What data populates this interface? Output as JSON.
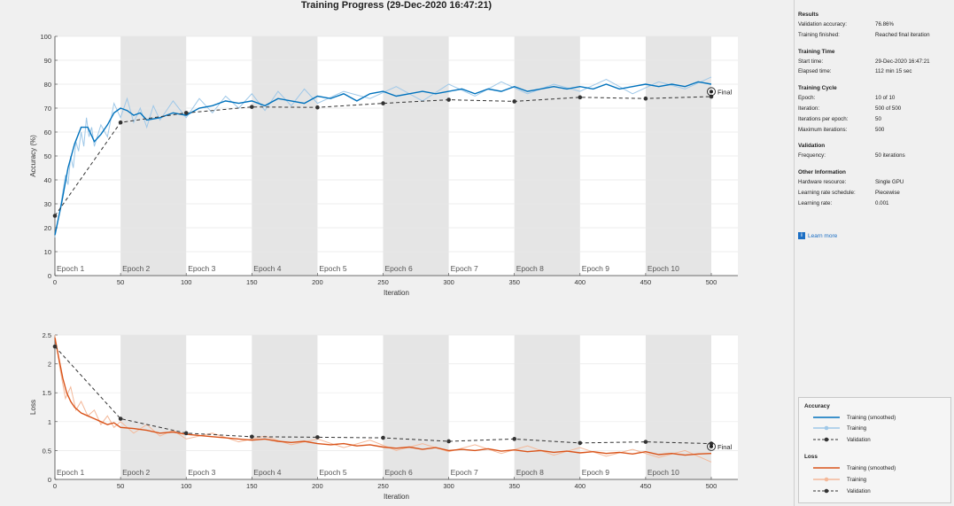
{
  "title": "Training Progress (29-Dec-2020 16:47:21)",
  "chart_data": [
    {
      "type": "line",
      "name": "accuracy",
      "ylabel": "Accuracy (%)",
      "xlabel": "Iteration",
      "xlim": [
        0,
        500
      ],
      "ylim": [
        0,
        100
      ],
      "xticks": [
        0,
        50,
        100,
        150,
        200,
        250,
        300,
        350,
        400,
        450,
        500
      ],
      "yticks": [
        0,
        10,
        20,
        30,
        40,
        50,
        60,
        70,
        80,
        90,
        100
      ],
      "epochs": [
        "Epoch 1",
        "Epoch 2",
        "Epoch 3",
        "Epoch 4",
        "Epoch 5",
        "Epoch 6",
        "Epoch 7",
        "Epoch 8",
        "Epoch 9",
        "Epoch 10"
      ],
      "smoothed": {
        "x": [
          0,
          5,
          10,
          15,
          20,
          25,
          30,
          35,
          40,
          45,
          50,
          55,
          60,
          65,
          70,
          80,
          90,
          100,
          110,
          120,
          130,
          140,
          150,
          160,
          170,
          180,
          190,
          200,
          210,
          220,
          230,
          240,
          250,
          260,
          270,
          280,
          290,
          300,
          310,
          320,
          330,
          340,
          350,
          360,
          370,
          380,
          390,
          400,
          410,
          420,
          430,
          440,
          450,
          460,
          470,
          480,
          490,
          500
        ],
        "y": [
          17,
          30,
          45,
          55,
          62,
          62,
          56,
          59,
          63,
          68,
          70,
          69,
          67,
          68,
          65,
          66,
          68,
          67,
          70,
          71,
          73,
          72,
          73,
          71,
          74,
          73,
          72,
          75,
          74,
          76,
          73,
          76,
          77,
          75,
          76,
          77,
          76,
          77,
          78,
          76,
          78,
          77,
          79,
          77,
          78,
          79,
          78,
          79,
          78,
          80,
          78,
          79,
          80,
          79,
          80,
          79,
          81,
          80
        ]
      },
      "training": {
        "x": [
          0,
          2,
          4,
          6,
          8,
          10,
          12,
          14,
          16,
          18,
          20,
          22,
          24,
          26,
          28,
          30,
          35,
          40,
          45,
          50,
          55,
          60,
          65,
          70,
          75,
          80,
          90,
          100,
          110,
          120,
          130,
          140,
          150,
          160,
          170,
          180,
          190,
          200,
          220,
          240,
          260,
          280,
          300,
          320,
          340,
          360,
          380,
          400,
          420,
          440,
          460,
          480,
          500
        ],
        "y": [
          16,
          22,
          28,
          35,
          42,
          38,
          50,
          45,
          56,
          52,
          60,
          54,
          66,
          58,
          62,
          54,
          63,
          58,
          72,
          66,
          74,
          64,
          70,
          62,
          71,
          65,
          73,
          66,
          74,
          68,
          75,
          70,
          76,
          69,
          77,
          71,
          78,
          72,
          77,
          74,
          79,
          73,
          80,
          75,
          81,
          76,
          80,
          77,
          82,
          76,
          81,
          78,
          83
        ]
      },
      "validation": {
        "x": [
          0,
          50,
          100,
          150,
          200,
          250,
          300,
          350,
          400,
          450,
          500
        ],
        "y": [
          25,
          64,
          68,
          70.5,
          70.3,
          72,
          73.5,
          72.8,
          74.5,
          74,
          74.8
        ]
      },
      "final_marker": {
        "label": "Final",
        "x": 500,
        "y": 76.9
      }
    },
    {
      "type": "line",
      "name": "loss",
      "ylabel": "Loss",
      "xlabel": "Iteration",
      "xlim": [
        0,
        500
      ],
      "ylim": [
        0,
        2.5
      ],
      "xticks": [
        0,
        50,
        100,
        150,
        200,
        250,
        300,
        350,
        400,
        450,
        500
      ],
      "yticks": [
        0,
        0.5,
        1,
        1.5,
        2,
        2.5
      ],
      "epochs": [
        "Epoch 1",
        "Epoch 2",
        "Epoch 3",
        "Epoch 4",
        "Epoch 5",
        "Epoch 6",
        "Epoch 7",
        "Epoch 8",
        "Epoch 9",
        "Epoch 10"
      ],
      "smoothed": {
        "x": [
          0,
          3,
          6,
          9,
          12,
          15,
          20,
          25,
          30,
          35,
          40,
          45,
          50,
          60,
          70,
          80,
          90,
          100,
          110,
          120,
          130,
          140,
          150,
          160,
          170,
          180,
          190,
          200,
          210,
          220,
          230,
          240,
          250,
          260,
          270,
          280,
          290,
          300,
          310,
          320,
          330,
          340,
          350,
          360,
          370,
          380,
          390,
          400,
          410,
          420,
          430,
          440,
          450,
          460,
          470,
          480,
          490,
          500
        ],
        "y": [
          2.45,
          2.1,
          1.75,
          1.5,
          1.35,
          1.25,
          1.15,
          1.1,
          1.05,
          1.0,
          0.95,
          0.98,
          0.9,
          0.88,
          0.85,
          0.8,
          0.82,
          0.78,
          0.76,
          0.74,
          0.72,
          0.7,
          0.68,
          0.7,
          0.66,
          0.64,
          0.66,
          0.62,
          0.6,
          0.62,
          0.58,
          0.6,
          0.56,
          0.54,
          0.56,
          0.52,
          0.55,
          0.5,
          0.52,
          0.5,
          0.53,
          0.49,
          0.51,
          0.48,
          0.5,
          0.47,
          0.49,
          0.46,
          0.48,
          0.45,
          0.47,
          0.44,
          0.48,
          0.43,
          0.45,
          0.42,
          0.44,
          0.45
        ]
      },
      "training": {
        "x": [
          0,
          4,
          8,
          12,
          16,
          20,
          25,
          30,
          35,
          40,
          45,
          50,
          60,
          70,
          80,
          90,
          100,
          120,
          140,
          160,
          180,
          200,
          220,
          240,
          260,
          280,
          300,
          320,
          340,
          360,
          380,
          400,
          420,
          440,
          460,
          480,
          500
        ],
        "y": [
          2.5,
          1.9,
          1.4,
          1.6,
          1.2,
          1.35,
          1.1,
          1.2,
          0.95,
          1.1,
          0.9,
          1.0,
          0.8,
          0.95,
          0.75,
          0.85,
          0.7,
          0.8,
          0.65,
          0.75,
          0.6,
          0.7,
          0.55,
          0.68,
          0.5,
          0.62,
          0.48,
          0.6,
          0.45,
          0.58,
          0.42,
          0.55,
          0.4,
          0.52,
          0.38,
          0.5,
          0.3
        ]
      },
      "validation": {
        "x": [
          0,
          50,
          100,
          150,
          200,
          250,
          300,
          350,
          400,
          450,
          500
        ],
        "y": [
          2.3,
          1.05,
          0.8,
          0.74,
          0.73,
          0.72,
          0.66,
          0.7,
          0.63,
          0.65,
          0.62
        ]
      },
      "final_marker": {
        "label": "Final",
        "x": 500,
        "y": 0.57
      }
    }
  ],
  "colors": {
    "accuracy_smoothed": "#0072bd",
    "accuracy_training": "#9fc8e8",
    "loss_smoothed": "#d95319",
    "loss_training": "#f4b899",
    "validation": "#333333",
    "epoch_shade": "#e5e5e5"
  },
  "panel": {
    "sections": [
      {
        "title": "Results",
        "rows": [
          {
            "label": "Validation accuracy:",
            "value": "76.86%"
          },
          {
            "label": "Training finished:",
            "value": "Reached final iteration"
          }
        ]
      },
      {
        "title": "Training Time",
        "rows": [
          {
            "label": "Start time:",
            "value": "29-Dec-2020 16:47:21"
          },
          {
            "label": "Elapsed time:",
            "value": "112 min 15 sec"
          }
        ]
      },
      {
        "title": "Training Cycle",
        "rows": [
          {
            "label": "Epoch:",
            "value": "10 of 10"
          },
          {
            "label": "Iteration:",
            "value": "500 of 500"
          },
          {
            "label": "Iterations per epoch:",
            "value": "50"
          },
          {
            "label": "Maximum iterations:",
            "value": "500"
          }
        ]
      },
      {
        "title": "Validation",
        "rows": [
          {
            "label": "Frequency:",
            "value": "50 iterations"
          }
        ]
      },
      {
        "title": "Other Information",
        "rows": [
          {
            "label": "Hardware resource:",
            "value": "Single GPU"
          },
          {
            "label": "Learning rate schedule:",
            "value": "Piecewise"
          },
          {
            "label": "Learning rate:",
            "value": "0.001"
          }
        ]
      }
    ],
    "learn_more": "Learn more"
  },
  "legend": {
    "accuracy_title": "Accuracy",
    "loss_title": "Loss",
    "smoothed": "Training (smoothed)",
    "training": "Training",
    "validation": "Validation"
  }
}
